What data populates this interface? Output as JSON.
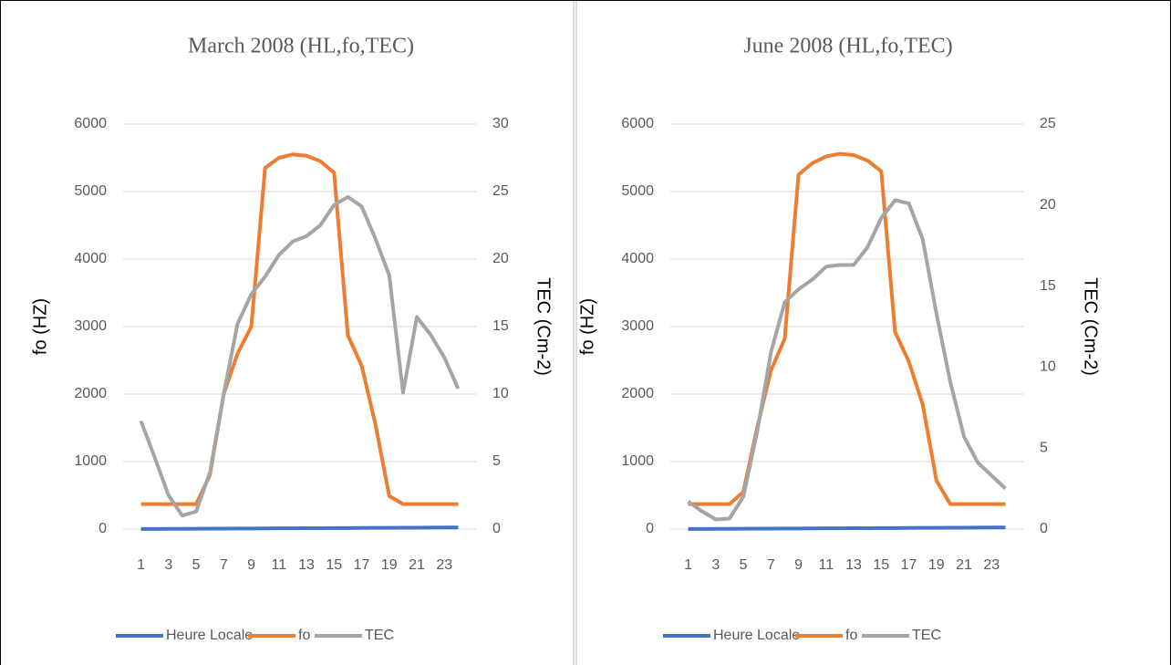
{
  "chart_data": [
    {
      "type": "line",
      "title": "March 2008 (HL,fo,TEC)",
      "y_label": "fo (HZ)",
      "y2_label": "TEC (Cm-2)",
      "categories": [
        1,
        null,
        3,
        null,
        5,
        null,
        7,
        null,
        9,
        null,
        11,
        null,
        13,
        null,
        15,
        null,
        17,
        null,
        19,
        null,
        21,
        null,
        23,
        null
      ],
      "ylim": [
        0,
        6000
      ],
      "yticks": [
        0,
        1000,
        2000,
        3000,
        4000,
        5000,
        6000
      ],
      "y2lim": [
        0,
        30
      ],
      "y2ticks": [
        0,
        5,
        10,
        15,
        20,
        25,
        30
      ],
      "grid": true,
      "series": [
        {
          "name": "Heure Locale",
          "color": "#4472c4",
          "values": [
            1,
            2,
            3,
            4,
            5,
            6,
            7,
            8,
            9,
            10,
            11,
            12,
            13,
            14,
            15,
            16,
            17,
            18,
            19,
            20,
            21,
            22,
            23,
            24
          ]
        },
        {
          "name": "fo",
          "color": "#ed7d31",
          "values": [
            370,
            370,
            370,
            370,
            370,
            800,
            2000,
            2600,
            3000,
            5350,
            5500,
            5550,
            5530,
            5450,
            5280,
            2870,
            2420,
            1550,
            490,
            370,
            370,
            370,
            370,
            370
          ]
        },
        {
          "name": "TEC",
          "color": "#a5a5a5",
          "axis": "y2",
          "values": [
            8,
            5.3,
            2.5,
            1,
            1.3,
            4.2,
            10,
            15.2,
            17.4,
            18.7,
            20.3,
            21.3,
            21.7,
            22.5,
            24,
            24.6,
            23.9,
            21.5,
            18.8,
            10.1,
            15.7,
            14.4,
            12.7,
            10.4
          ]
        }
      ]
    },
    {
      "type": "line",
      "title": "June 2008 (HL,fo,TEC)",
      "y_label": "fo (HZ)",
      "y2_label": "TEC (Cm-2)",
      "categories": [
        1,
        null,
        3,
        null,
        5,
        null,
        7,
        null,
        9,
        null,
        11,
        null,
        13,
        null,
        15,
        null,
        17,
        null,
        19,
        null,
        21,
        null,
        23,
        null
      ],
      "ylim": [
        0,
        6000
      ],
      "yticks": [
        0,
        1000,
        2000,
        3000,
        4000,
        5000,
        6000
      ],
      "y2lim": [
        0,
        25
      ],
      "y2ticks": [
        0,
        5,
        10,
        15,
        20,
        25
      ],
      "grid": true,
      "series": [
        {
          "name": "Heure Locale",
          "color": "#4472c4",
          "values": [
            1,
            2,
            3,
            4,
            5,
            6,
            7,
            8,
            9,
            10,
            11,
            12,
            13,
            14,
            15,
            16,
            17,
            18,
            19,
            20,
            21,
            22,
            23,
            24
          ]
        },
        {
          "name": "fo",
          "color": "#ed7d31",
          "values": [
            370,
            370,
            370,
            370,
            550,
            1500,
            2350,
            2820,
            5250,
            5420,
            5520,
            5560,
            5540,
            5460,
            5300,
            2920,
            2480,
            1850,
            720,
            370,
            370,
            370,
            370,
            370
          ]
        },
        {
          "name": "TEC",
          "color": "#a5a5a5",
          "axis": "y2",
          "values": [
            1.7,
            1.1,
            0.6,
            0.65,
            2,
            6,
            10.9,
            14,
            14.8,
            15.4,
            16.2,
            16.3,
            16.3,
            17.4,
            19.2,
            20.3,
            20.1,
            17.9,
            13.3,
            9.1,
            5.7,
            4.1,
            3.3,
            2.5
          ]
        }
      ]
    }
  ]
}
